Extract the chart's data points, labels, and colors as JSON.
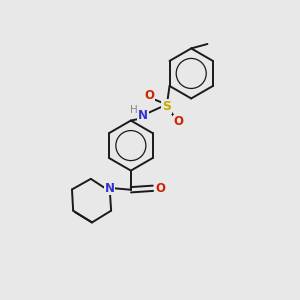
{
  "background_color": "#e8e8e8",
  "bond_color": "#1a1a1a",
  "atom_colors": {
    "N": "#3333cc",
    "O": "#cc2200",
    "S": "#ccaa00",
    "H": "#888888",
    "C": "#1a1a1a"
  },
  "figsize": [
    3.0,
    3.0
  ],
  "dpi": 100
}
